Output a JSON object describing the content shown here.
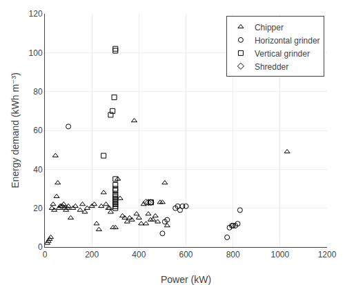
{
  "chart_data": {
    "type": "scatter",
    "xlabel": "Power (kW)",
    "ylabel": "Energy demand (kWh m⁻³)",
    "xlim": [
      0,
      1200
    ],
    "ylim": [
      0,
      120
    ],
    "xticks": [
      0,
      200,
      400,
      600,
      800,
      1000,
      1200
    ],
    "yticks": [
      0,
      20,
      40,
      60,
      80,
      100,
      120
    ],
    "grid": true,
    "legend": "upper right",
    "color": "black",
    "series": [
      {
        "name": "Chipper",
        "marker": "triangle",
        "x": [
          10,
          15,
          20,
          25,
          30,
          35,
          40,
          45,
          50,
          55,
          60,
          65,
          70,
          75,
          80,
          85,
          90,
          95,
          100,
          110,
          120,
          130,
          150,
          160,
          170,
          180,
          200,
          210,
          220,
          230,
          240,
          250,
          260,
          270,
          275,
          280,
          290,
          300,
          310,
          320,
          330,
          340,
          350,
          360,
          370,
          380,
          390,
          400,
          410,
          420,
          430,
          440,
          450,
          460,
          470,
          480,
          490,
          500,
          510,
          520,
          1030
        ],
        "values": [
          2,
          3,
          4,
          5,
          20,
          22,
          19,
          47,
          26,
          33,
          20,
          21,
          21,
          21,
          22,
          20,
          19,
          20,
          21,
          15,
          20,
          21,
          19,
          22,
          18,
          20,
          21,
          22,
          12,
          9,
          21,
          28,
          22,
          20,
          20,
          18,
          10,
          10,
          35,
          25,
          16,
          15,
          13,
          15,
          14,
          65,
          17,
          15,
          12,
          22,
          12,
          17,
          14,
          14,
          16,
          13,
          23,
          23,
          33,
          11,
          49
        ]
      },
      {
        "name": "Horizontal grinder",
        "marker": "circle",
        "x": [
          100,
          500,
          510,
          520,
          555,
          565,
          575,
          585,
          600,
          775,
          785,
          795,
          800,
          810,
          820,
          830
        ],
        "values": [
          62,
          7,
          13,
          14,
          20,
          21,
          19,
          21,
          21,
          5,
          10,
          11,
          11,
          11,
          12,
          19
        ]
      },
      {
        "name": "Vertical grinder",
        "marker": "square",
        "x": [
          250,
          280,
          288,
          295,
          300,
          300,
          300,
          300,
          300,
          300,
          300,
          300,
          300,
          300,
          300,
          300,
          300,
          300,
          450,
          452
        ],
        "values": [
          47,
          68,
          70,
          77,
          102,
          101,
          35,
          32,
          30,
          29,
          27,
          26,
          25,
          24,
          23,
          22,
          21,
          20,
          23,
          23
        ]
      },
      {
        "name": "Shredder",
        "marker": "diamond",
        "x": [
          430,
          440,
          450
        ],
        "values": [
          23,
          23,
          23
        ]
      }
    ]
  }
}
